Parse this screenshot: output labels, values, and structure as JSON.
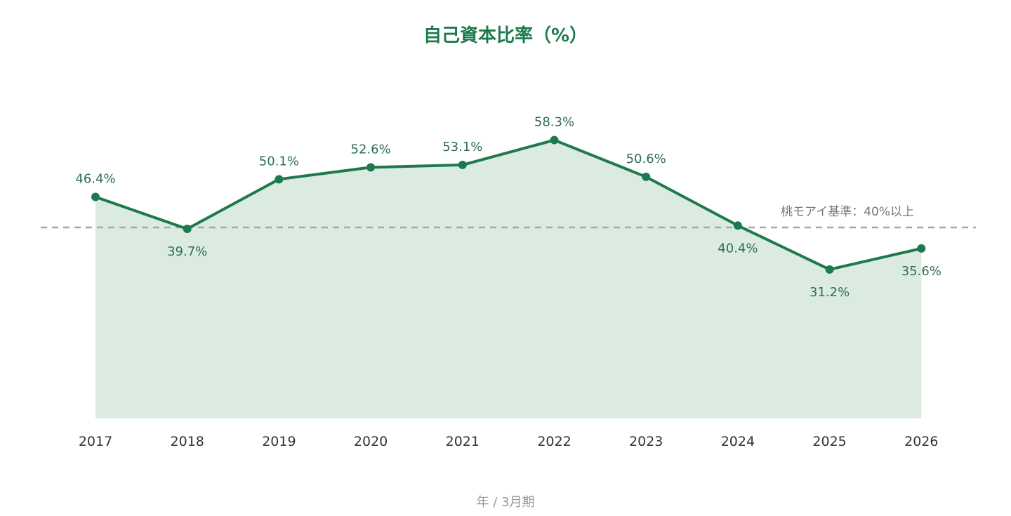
{
  "chart_data": {
    "type": "area",
    "title": "自己資本比率（%）",
    "xlabel": "年 / 3月期",
    "ylabel": "",
    "categories": [
      "2017",
      "2018",
      "2019",
      "2020",
      "2021",
      "2022",
      "2023",
      "2024",
      "2025",
      "2026"
    ],
    "values": [
      46.4,
      39.7,
      50.1,
      52.6,
      53.1,
      58.3,
      50.6,
      40.4,
      31.2,
      35.6
    ],
    "data_labels": [
      "46.4%",
      "39.7%",
      "50.1%",
      "52.6%",
      "53.1%",
      "58.3%",
      "50.6%",
      "40.4%",
      "31.2%",
      "35.6%"
    ],
    "ylim": [
      0,
      100
    ],
    "grid": false,
    "legend": "none",
    "reference_line": {
      "value": 40,
      "label": "桃モアイ基準：40%以上",
      "style": "dashed",
      "color": "#a6a6a6"
    },
    "colors": {
      "line": "#1e7a4d",
      "area": "#dcebe1",
      "title": "#1e7a4d"
    }
  }
}
